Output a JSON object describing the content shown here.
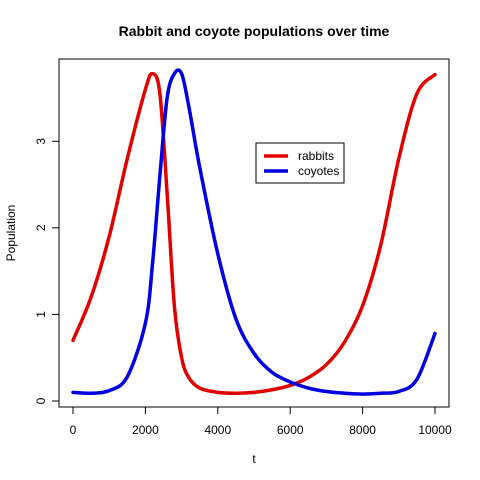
{
  "chart_data": {
    "type": "line",
    "title": "Rabbit and coyote populations over time",
    "xlabel": "t",
    "ylabel": "Population",
    "xlim": [
      0,
      10000
    ],
    "ylim": [
      0,
      3.8
    ],
    "x_ticks": [
      0,
      2000,
      4000,
      6000,
      8000,
      10000
    ],
    "y_ticks": [
      0,
      1,
      2,
      3
    ],
    "grid": false,
    "legend_position": "upper-center-right",
    "x": [
      0,
      500,
      1000,
      1500,
      2000,
      2200,
      2400,
      2600,
      2800,
      3000,
      3200,
      3500,
      4000,
      4500,
      5000,
      5500,
      6000,
      6500,
      7000,
      7500,
      8000,
      8500,
      9000,
      9500,
      10000
    ],
    "series": [
      {
        "name": "rabbits",
        "color": "#e00000",
        "values": [
          0.7,
          1.2,
          1.9,
          2.8,
          3.6,
          3.78,
          3.55,
          2.4,
          1.1,
          0.5,
          0.27,
          0.15,
          0.1,
          0.09,
          0.1,
          0.13,
          0.18,
          0.27,
          0.42,
          0.68,
          1.1,
          1.8,
          2.8,
          3.55,
          3.77
        ]
      },
      {
        "name": "coyotes",
        "color": "#0000e0",
        "values": [
          0.1,
          0.09,
          0.12,
          0.28,
          0.9,
          1.6,
          2.6,
          3.5,
          3.78,
          3.78,
          3.4,
          2.7,
          1.7,
          0.95,
          0.55,
          0.33,
          0.22,
          0.15,
          0.11,
          0.09,
          0.08,
          0.09,
          0.11,
          0.25,
          0.78
        ]
      }
    ]
  }
}
